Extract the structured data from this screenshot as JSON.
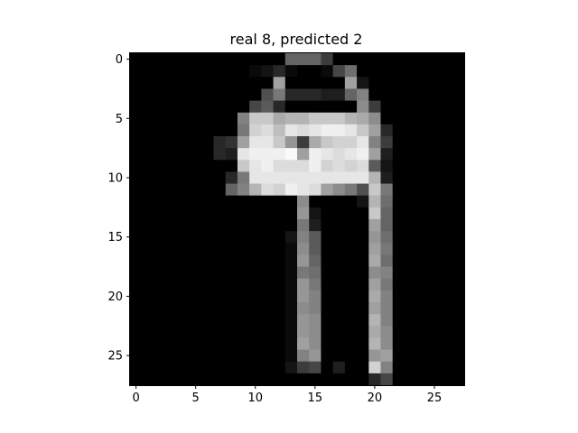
{
  "chart_data": {
    "type": "heatmap",
    "title": "real 8, predicted 2",
    "xlabel": "",
    "ylabel": "",
    "colormap": "gray",
    "value_range": [
      0,
      255
    ],
    "xlim": [
      -0.5,
      27.5
    ],
    "ylim": [
      27.5,
      -0.5
    ],
    "x_ticks": [
      0,
      5,
      10,
      15,
      20,
      25
    ],
    "y_ticks": [
      0,
      5,
      10,
      15,
      20,
      25
    ],
    "x_tick_labels": [
      "0",
      "5",
      "10",
      "15",
      "20",
      "25"
    ],
    "y_tick_labels": [
      "0",
      "5",
      "10",
      "15",
      "20",
      "25"
    ],
    "grid": false,
    "pixels": [
      [
        0,
        0,
        0,
        0,
        0,
        0,
        0,
        0,
        0,
        0,
        0,
        0,
        0,
        100,
        100,
        100,
        60,
        0,
        0,
        0,
        0,
        0,
        0,
        0,
        0,
        0,
        0,
        0
      ],
      [
        0,
        0,
        0,
        0,
        0,
        0,
        0,
        0,
        0,
        0,
        10,
        20,
        40,
        10,
        0,
        0,
        10,
        70,
        110,
        0,
        0,
        0,
        0,
        0,
        0,
        0,
        0,
        0
      ],
      [
        0,
        0,
        0,
        0,
        0,
        0,
        0,
        0,
        0,
        0,
        0,
        0,
        160,
        0,
        0,
        0,
        0,
        0,
        160,
        20,
        0,
        0,
        0,
        0,
        0,
        0,
        0,
        0
      ],
      [
        0,
        0,
        0,
        0,
        0,
        0,
        0,
        0,
        0,
        0,
        0,
        80,
        120,
        40,
        40,
        40,
        30,
        30,
        100,
        130,
        0,
        0,
        0,
        0,
        0,
        0,
        0,
        0
      ],
      [
        0,
        0,
        0,
        0,
        0,
        0,
        0,
        0,
        0,
        0,
        70,
        90,
        40,
        0,
        0,
        0,
        0,
        0,
        0,
        140,
        60,
        0,
        0,
        0,
        0,
        0,
        0,
        0
      ],
      [
        0,
        0,
        0,
        0,
        0,
        0,
        0,
        0,
        0,
        130,
        200,
        200,
        170,
        180,
        180,
        200,
        200,
        200,
        180,
        170,
        140,
        0,
        0,
        0,
        0,
        0,
        0,
        0
      ],
      [
        0,
        0,
        0,
        0,
        0,
        0,
        0,
        0,
        0,
        120,
        210,
        220,
        190,
        230,
        220,
        230,
        240,
        240,
        230,
        200,
        160,
        40,
        0,
        0,
        0,
        0,
        0,
        0
      ],
      [
        0,
        0,
        0,
        0,
        0,
        0,
        0,
        40,
        50,
        160,
        230,
        230,
        200,
        150,
        60,
        170,
        200,
        210,
        210,
        230,
        130,
        60,
        0,
        0,
        0,
        0,
        0,
        0
      ],
      [
        0,
        0,
        0,
        0,
        0,
        0,
        0,
        40,
        30,
        230,
        240,
        240,
        240,
        250,
        160,
        240,
        230,
        220,
        230,
        240,
        160,
        30,
        0,
        0,
        0,
        0,
        0,
        0
      ],
      [
        0,
        0,
        0,
        0,
        0,
        0,
        0,
        0,
        0,
        200,
        230,
        240,
        220,
        220,
        220,
        240,
        210,
        220,
        210,
        220,
        90,
        20,
        0,
        0,
        0,
        0,
        0,
        0
      ],
      [
        0,
        0,
        0,
        0,
        0,
        0,
        0,
        0,
        40,
        120,
        230,
        230,
        230,
        230,
        230,
        230,
        230,
        230,
        230,
        230,
        180,
        30,
        0,
        0,
        0,
        0,
        0,
        0
      ],
      [
        0,
        0,
        0,
        0,
        0,
        0,
        0,
        0,
        100,
        130,
        180,
        220,
        210,
        240,
        230,
        220,
        160,
        140,
        120,
        80,
        200,
        120,
        0,
        0,
        0,
        0,
        0,
        0
      ],
      [
        0,
        0,
        0,
        0,
        0,
        0,
        0,
        0,
        0,
        0,
        0,
        0,
        0,
        0,
        140,
        0,
        0,
        0,
        0,
        20,
        180,
        110,
        0,
        0,
        0,
        0,
        0,
        0
      ],
      [
        0,
        0,
        0,
        0,
        0,
        0,
        0,
        0,
        0,
        0,
        0,
        0,
        0,
        0,
        150,
        20,
        0,
        0,
        0,
        0,
        200,
        100,
        0,
        0,
        0,
        0,
        0,
        0
      ],
      [
        0,
        0,
        0,
        0,
        0,
        0,
        0,
        0,
        0,
        0,
        0,
        0,
        0,
        0,
        120,
        30,
        0,
        0,
        0,
        0,
        160,
        100,
        0,
        0,
        0,
        0,
        0,
        0
      ],
      [
        0,
        0,
        0,
        0,
        0,
        0,
        0,
        0,
        0,
        0,
        0,
        0,
        0,
        20,
        130,
        90,
        0,
        0,
        0,
        0,
        150,
        110,
        0,
        0,
        0,
        0,
        0,
        0
      ],
      [
        0,
        0,
        0,
        0,
        0,
        0,
        0,
        0,
        0,
        0,
        0,
        0,
        0,
        10,
        140,
        90,
        0,
        0,
        0,
        0,
        160,
        120,
        0,
        0,
        0,
        0,
        0,
        0
      ],
      [
        0,
        0,
        0,
        0,
        0,
        0,
        0,
        0,
        0,
        0,
        0,
        0,
        0,
        10,
        150,
        100,
        0,
        0,
        0,
        0,
        170,
        110,
        0,
        0,
        0,
        0,
        0,
        0
      ],
      [
        0,
        0,
        0,
        0,
        0,
        0,
        0,
        0,
        0,
        0,
        0,
        0,
        0,
        10,
        120,
        110,
        0,
        0,
        0,
        0,
        140,
        130,
        0,
        0,
        0,
        0,
        0,
        0
      ],
      [
        0,
        0,
        0,
        0,
        0,
        0,
        0,
        0,
        0,
        0,
        0,
        0,
        0,
        10,
        150,
        120,
        0,
        0,
        0,
        0,
        160,
        120,
        0,
        0,
        0,
        0,
        0,
        0
      ],
      [
        0,
        0,
        0,
        0,
        0,
        0,
        0,
        0,
        0,
        0,
        0,
        0,
        0,
        10,
        150,
        130,
        0,
        0,
        0,
        0,
        170,
        130,
        0,
        0,
        0,
        0,
        0,
        0
      ],
      [
        0,
        0,
        0,
        0,
        0,
        0,
        0,
        0,
        0,
        0,
        0,
        0,
        0,
        10,
        140,
        130,
        0,
        0,
        0,
        0,
        160,
        130,
        0,
        0,
        0,
        0,
        0,
        0
      ],
      [
        0,
        0,
        0,
        0,
        0,
        0,
        0,
        0,
        0,
        0,
        0,
        0,
        0,
        10,
        150,
        140,
        0,
        0,
        0,
        0,
        180,
        130,
        0,
        0,
        0,
        0,
        0,
        0
      ],
      [
        0,
        0,
        0,
        0,
        0,
        0,
        0,
        0,
        0,
        0,
        0,
        0,
        0,
        10,
        150,
        140,
        0,
        0,
        0,
        0,
        170,
        140,
        0,
        0,
        0,
        0,
        0,
        0
      ],
      [
        0,
        0,
        0,
        0,
        0,
        0,
        0,
        0,
        0,
        0,
        0,
        0,
        0,
        10,
        160,
        140,
        0,
        0,
        0,
        0,
        180,
        140,
        0,
        0,
        0,
        0,
        0,
        0
      ],
      [
        0,
        0,
        0,
        0,
        0,
        0,
        0,
        0,
        0,
        0,
        0,
        0,
        0,
        10,
        130,
        150,
        0,
        0,
        0,
        0,
        150,
        160,
        0,
        0,
        0,
        0,
        0,
        0
      ],
      [
        0,
        0,
        0,
        0,
        0,
        0,
        0,
        0,
        0,
        0,
        0,
        0,
        0,
        20,
        60,
        70,
        0,
        30,
        0,
        0,
        210,
        130,
        0,
        0,
        0,
        0,
        0,
        0
      ],
      [
        0,
        0,
        0,
        0,
        0,
        0,
        0,
        0,
        0,
        0,
        0,
        0,
        0,
        0,
        0,
        0,
        0,
        0,
        0,
        0,
        40,
        70,
        0,
        0,
        0,
        0,
        0,
        0
      ]
    ]
  }
}
